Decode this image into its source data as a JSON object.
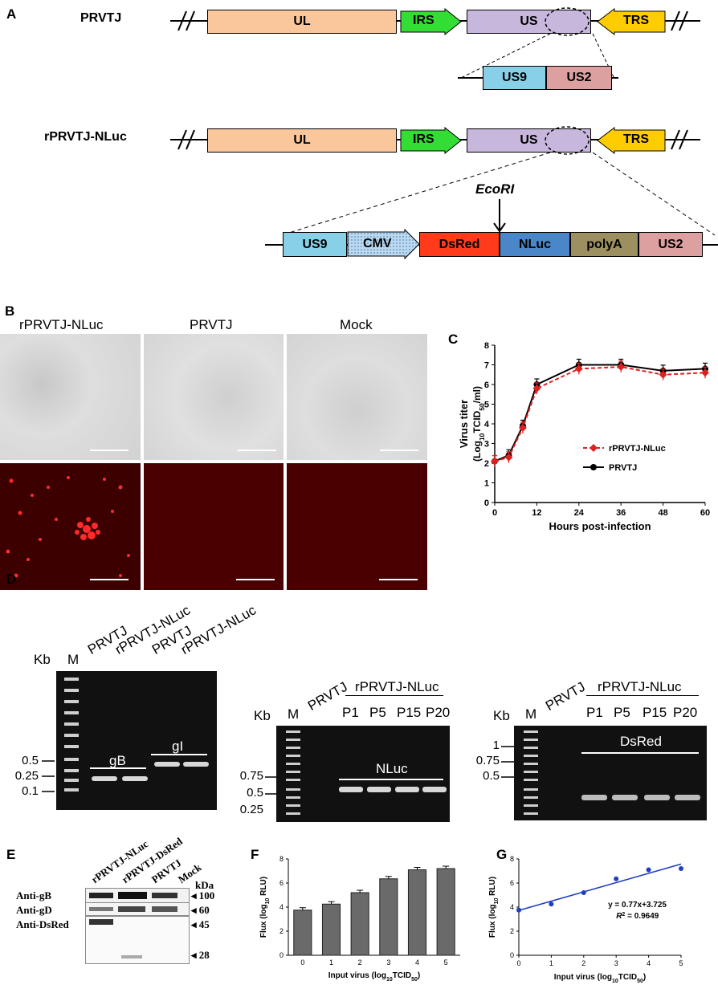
{
  "panels": {
    "a": "A",
    "b": "B",
    "c": "C",
    "d": "D",
    "e": "E",
    "f": "F",
    "g": "G"
  },
  "panelA": {
    "genomes": [
      {
        "name": "PRVTJ",
        "segments": [
          "UL",
          "IRS",
          "US",
          "TRS"
        ]
      },
      {
        "name": "rPRVTJ-NLuc",
        "segments": [
          "UL",
          "IRS",
          "US",
          "TRS"
        ]
      }
    ],
    "insert_wt": [
      "US9",
      "US2"
    ],
    "insert_recombinant": [
      "US9",
      "CMV",
      "DsRed",
      "NLuc",
      "polyA",
      "US2"
    ],
    "site": "EcoRI",
    "colors": {
      "UL": "#f9c79b",
      "IRS": "#33dd33",
      "US": "#c7b7dc",
      "TRS": "#ffcc00",
      "US9": "#88d0e8",
      "US2": "#dca0a0",
      "CMV": "#9ec6e6",
      "DsRed": "#ff3b1a",
      "NLuc": "#4a86c8",
      "polyA": "#9c9060"
    }
  },
  "panelB": {
    "columns": [
      "rPRVTJ-NLuc",
      "PRVTJ",
      "Mock"
    ]
  },
  "panelC": {
    "chart_data": {
      "type": "line",
      "xlabel": "Hours post-infection",
      "ylabel_line1": "Virus titer",
      "ylabel_line2": "(Log10TCID50/ml)",
      "x": [
        0,
        4,
        8,
        12,
        24,
        36,
        48,
        60
      ],
      "xticks": [
        0,
        12,
        24,
        36,
        48,
        60
      ],
      "yticks": [
        0,
        1,
        2,
        3,
        4,
        5,
        6,
        7,
        8
      ],
      "xlim": [
        0,
        60
      ],
      "ylim": [
        0,
        8
      ],
      "series": [
        {
          "name": "rPRVTJ-NLuc",
          "color": "#e02020",
          "values": [
            2.1,
            2.3,
            3.8,
            5.8,
            6.8,
            6.9,
            6.5,
            6.6
          ]
        },
        {
          "name": "PRVTJ",
          "color": "#000000",
          "values": [
            2.1,
            2.4,
            3.9,
            6.0,
            7.0,
            7.0,
            6.7,
            6.8
          ]
        }
      ]
    }
  },
  "panelD": {
    "gel1": {
      "kb": "Kb",
      "lanes": [
        "M",
        "PRVTJ",
        "rPRVTJ-NLuc",
        "PRVTJ",
        "rPRVTJ-NLuc"
      ],
      "markers": [
        "0.5",
        "0.25",
        "0.1"
      ],
      "bands": [
        "gB",
        "gI"
      ]
    },
    "gel2": {
      "kb": "Kb",
      "m": "M",
      "wt": "PRVTJ",
      "group": "rPRVTJ-NLuc",
      "passages": [
        "P1",
        "P5",
        "P15",
        "P20"
      ],
      "markers": [
        "0.75",
        "0.5",
        "0.25"
      ],
      "band": "NLuc"
    },
    "gel3": {
      "kb": "Kb",
      "m": "M",
      "wt": "PRVTJ",
      "group": "rPRVTJ-NLuc",
      "passages": [
        "P1",
        "P5",
        "P15",
        "P20"
      ],
      "markers": [
        "1",
        "0.75",
        "0.5"
      ],
      "band": "DsRed"
    }
  },
  "panelE": {
    "lanes": [
      "rPRVTJ-NLuc",
      "rPRVTJ-DsRed",
      "PRVTJ",
      "Mock"
    ],
    "rows": [
      "Anti-gB",
      "Anti-gD",
      "Anti-DsRed"
    ],
    "kda": "kDa",
    "markers": [
      "100",
      "60",
      "45",
      "28"
    ]
  },
  "panelF": {
    "chart_data": {
      "type": "bar",
      "xlabel": "Input virus (log10TCID50)",
      "ylabel": "Flux (log10 RLU)",
      "categories": [
        "0",
        "1",
        "2",
        "3",
        "4",
        "5"
      ],
      "values": [
        3.75,
        4.25,
        5.2,
        6.35,
        7.1,
        7.2
      ],
      "yticks": [
        0,
        2,
        4,
        6,
        8
      ],
      "ylim": [
        0,
        8
      ]
    }
  },
  "panelG": {
    "chart_data": {
      "type": "scatter",
      "xlabel": "Input virus (log10TCID50)",
      "ylabel": "Flux (log10 RLU)",
      "x": [
        0,
        1,
        2,
        3,
        4,
        5
      ],
      "y": [
        3.75,
        4.25,
        5.2,
        6.35,
        7.1,
        7.2
      ],
      "xticks": [
        0,
        1,
        2,
        3,
        4,
        5
      ],
      "yticks": [
        0,
        2,
        4,
        6,
        8
      ],
      "xlim": [
        0,
        5
      ],
      "ylim": [
        0,
        8
      ],
      "equation": "y = 0.77x+3.725",
      "r2": "R2 = 0.9649",
      "fit": {
        "slope": 0.77,
        "intercept": 3.725
      }
    }
  }
}
